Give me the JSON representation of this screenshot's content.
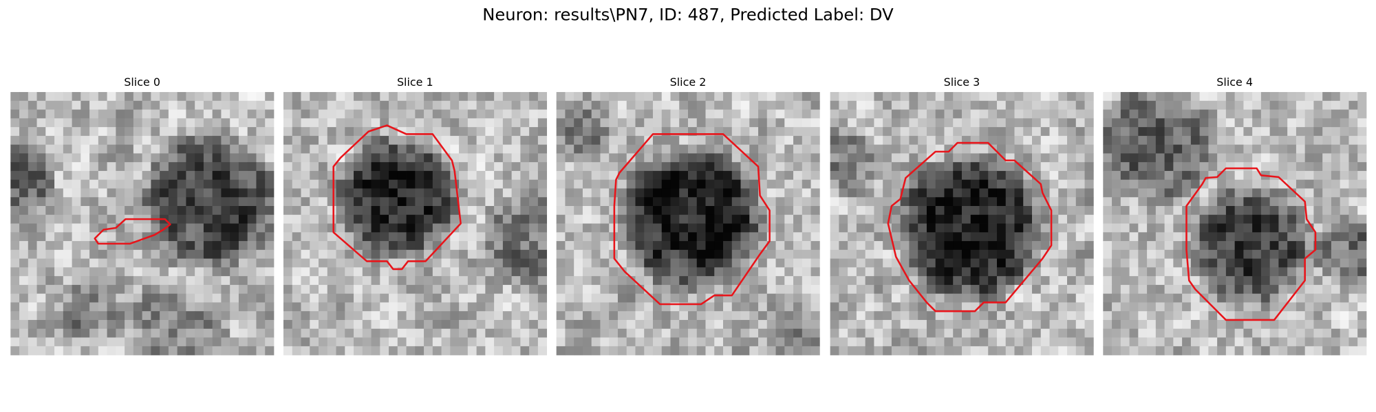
{
  "figure": {
    "title": "Neuron: results\\PN7, ID: 487, Predicted Label: DV",
    "slices": [
      {
        "title": "Slice 0"
      },
      {
        "title": "Slice 1"
      },
      {
        "title": "Slice 2"
      },
      {
        "title": "Slice 3"
      },
      {
        "title": "Slice 4"
      }
    ]
  }
}
